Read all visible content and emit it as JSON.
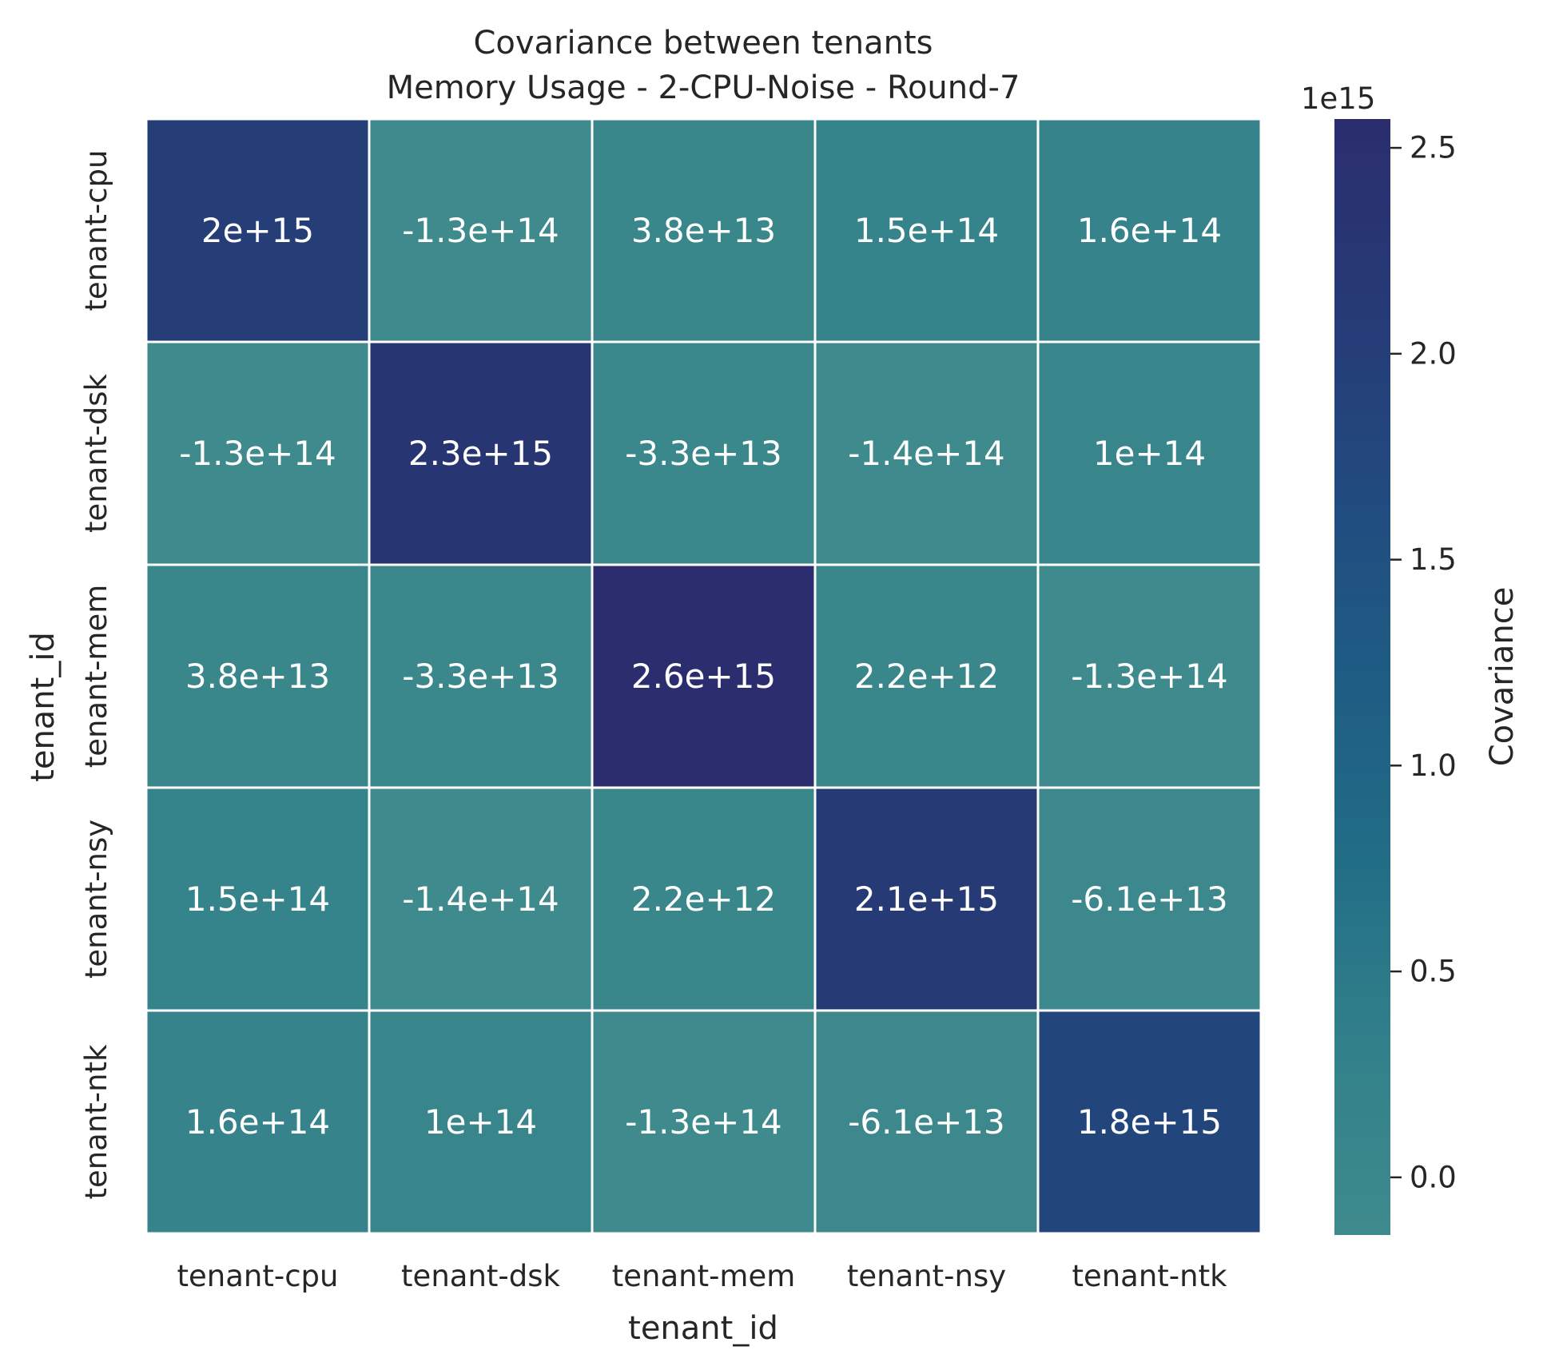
{
  "chart_data": {
    "type": "heatmap",
    "title": [
      "Covariance between tenants",
      "Memory Usage - 2-CPU-Noise - Round-7"
    ],
    "xlabel": "tenant_id",
    "ylabel": "tenant_id",
    "x_categories": [
      "tenant-cpu",
      "tenant-dsk",
      "tenant-mem",
      "tenant-nsy",
      "tenant-ntk"
    ],
    "y_categories": [
      "tenant-cpu",
      "tenant-dsk",
      "tenant-mem",
      "tenant-nsy",
      "tenant-ntk"
    ],
    "values": [
      [
        2000000000000000.0,
        -130000000000000.0,
        38000000000000.0,
        150000000000000.0,
        160000000000000.0
      ],
      [
        -130000000000000.0,
        2300000000000000.0,
        -33000000000000.0,
        -140000000000000.0,
        100000000000000.0
      ],
      [
        38000000000000.0,
        -33000000000000.0,
        2600000000000000.0,
        2200000000000.0,
        -130000000000000.0
      ],
      [
        150000000000000.0,
        -140000000000000.0,
        2200000000000.0,
        2100000000000000.0,
        -61000000000000.0
      ],
      [
        160000000000000.0,
        100000000000000.0,
        -130000000000000.0,
        -61000000000000.0,
        1800000000000000.0
      ]
    ],
    "annotations": [
      [
        "2e+15",
        "-1.3e+14",
        "3.8e+13",
        "1.5e+14",
        "1.6e+14"
      ],
      [
        "-1.3e+14",
        "2.3e+15",
        "-3.3e+13",
        "-1.4e+14",
        "1e+14"
      ],
      [
        "3.8e+13",
        "-3.3e+13",
        "2.6e+15",
        "2.2e+12",
        "-1.3e+14"
      ],
      [
        "1.5e+14",
        "-1.4e+14",
        "2.2e+12",
        "2.1e+15",
        "-6.1e+13"
      ],
      [
        "1.6e+14",
        "1e+14",
        "-1.3e+14",
        "-6.1e+13",
        "1.8e+15"
      ]
    ],
    "colorbar": {
      "label": "Covariance",
      "offset_text": "1e15",
      "range": [
        -140000000000000.0,
        2570000000000000.0
      ],
      "ticks": [
        0.0,
        0.5,
        1.0,
        1.5,
        2.0,
        2.5
      ],
      "tick_labels": [
        "0.0",
        "0.5",
        "1.0",
        "1.5",
        "2.0",
        "2.5"
      ],
      "tick_scale": 1000000000000000.0,
      "colors": [
        "#3e8a8c",
        "#32808a",
        "#226d86",
        "#1e5c84",
        "#214a7f",
        "#263a76",
        "#2b2d6e"
      ]
    }
  }
}
